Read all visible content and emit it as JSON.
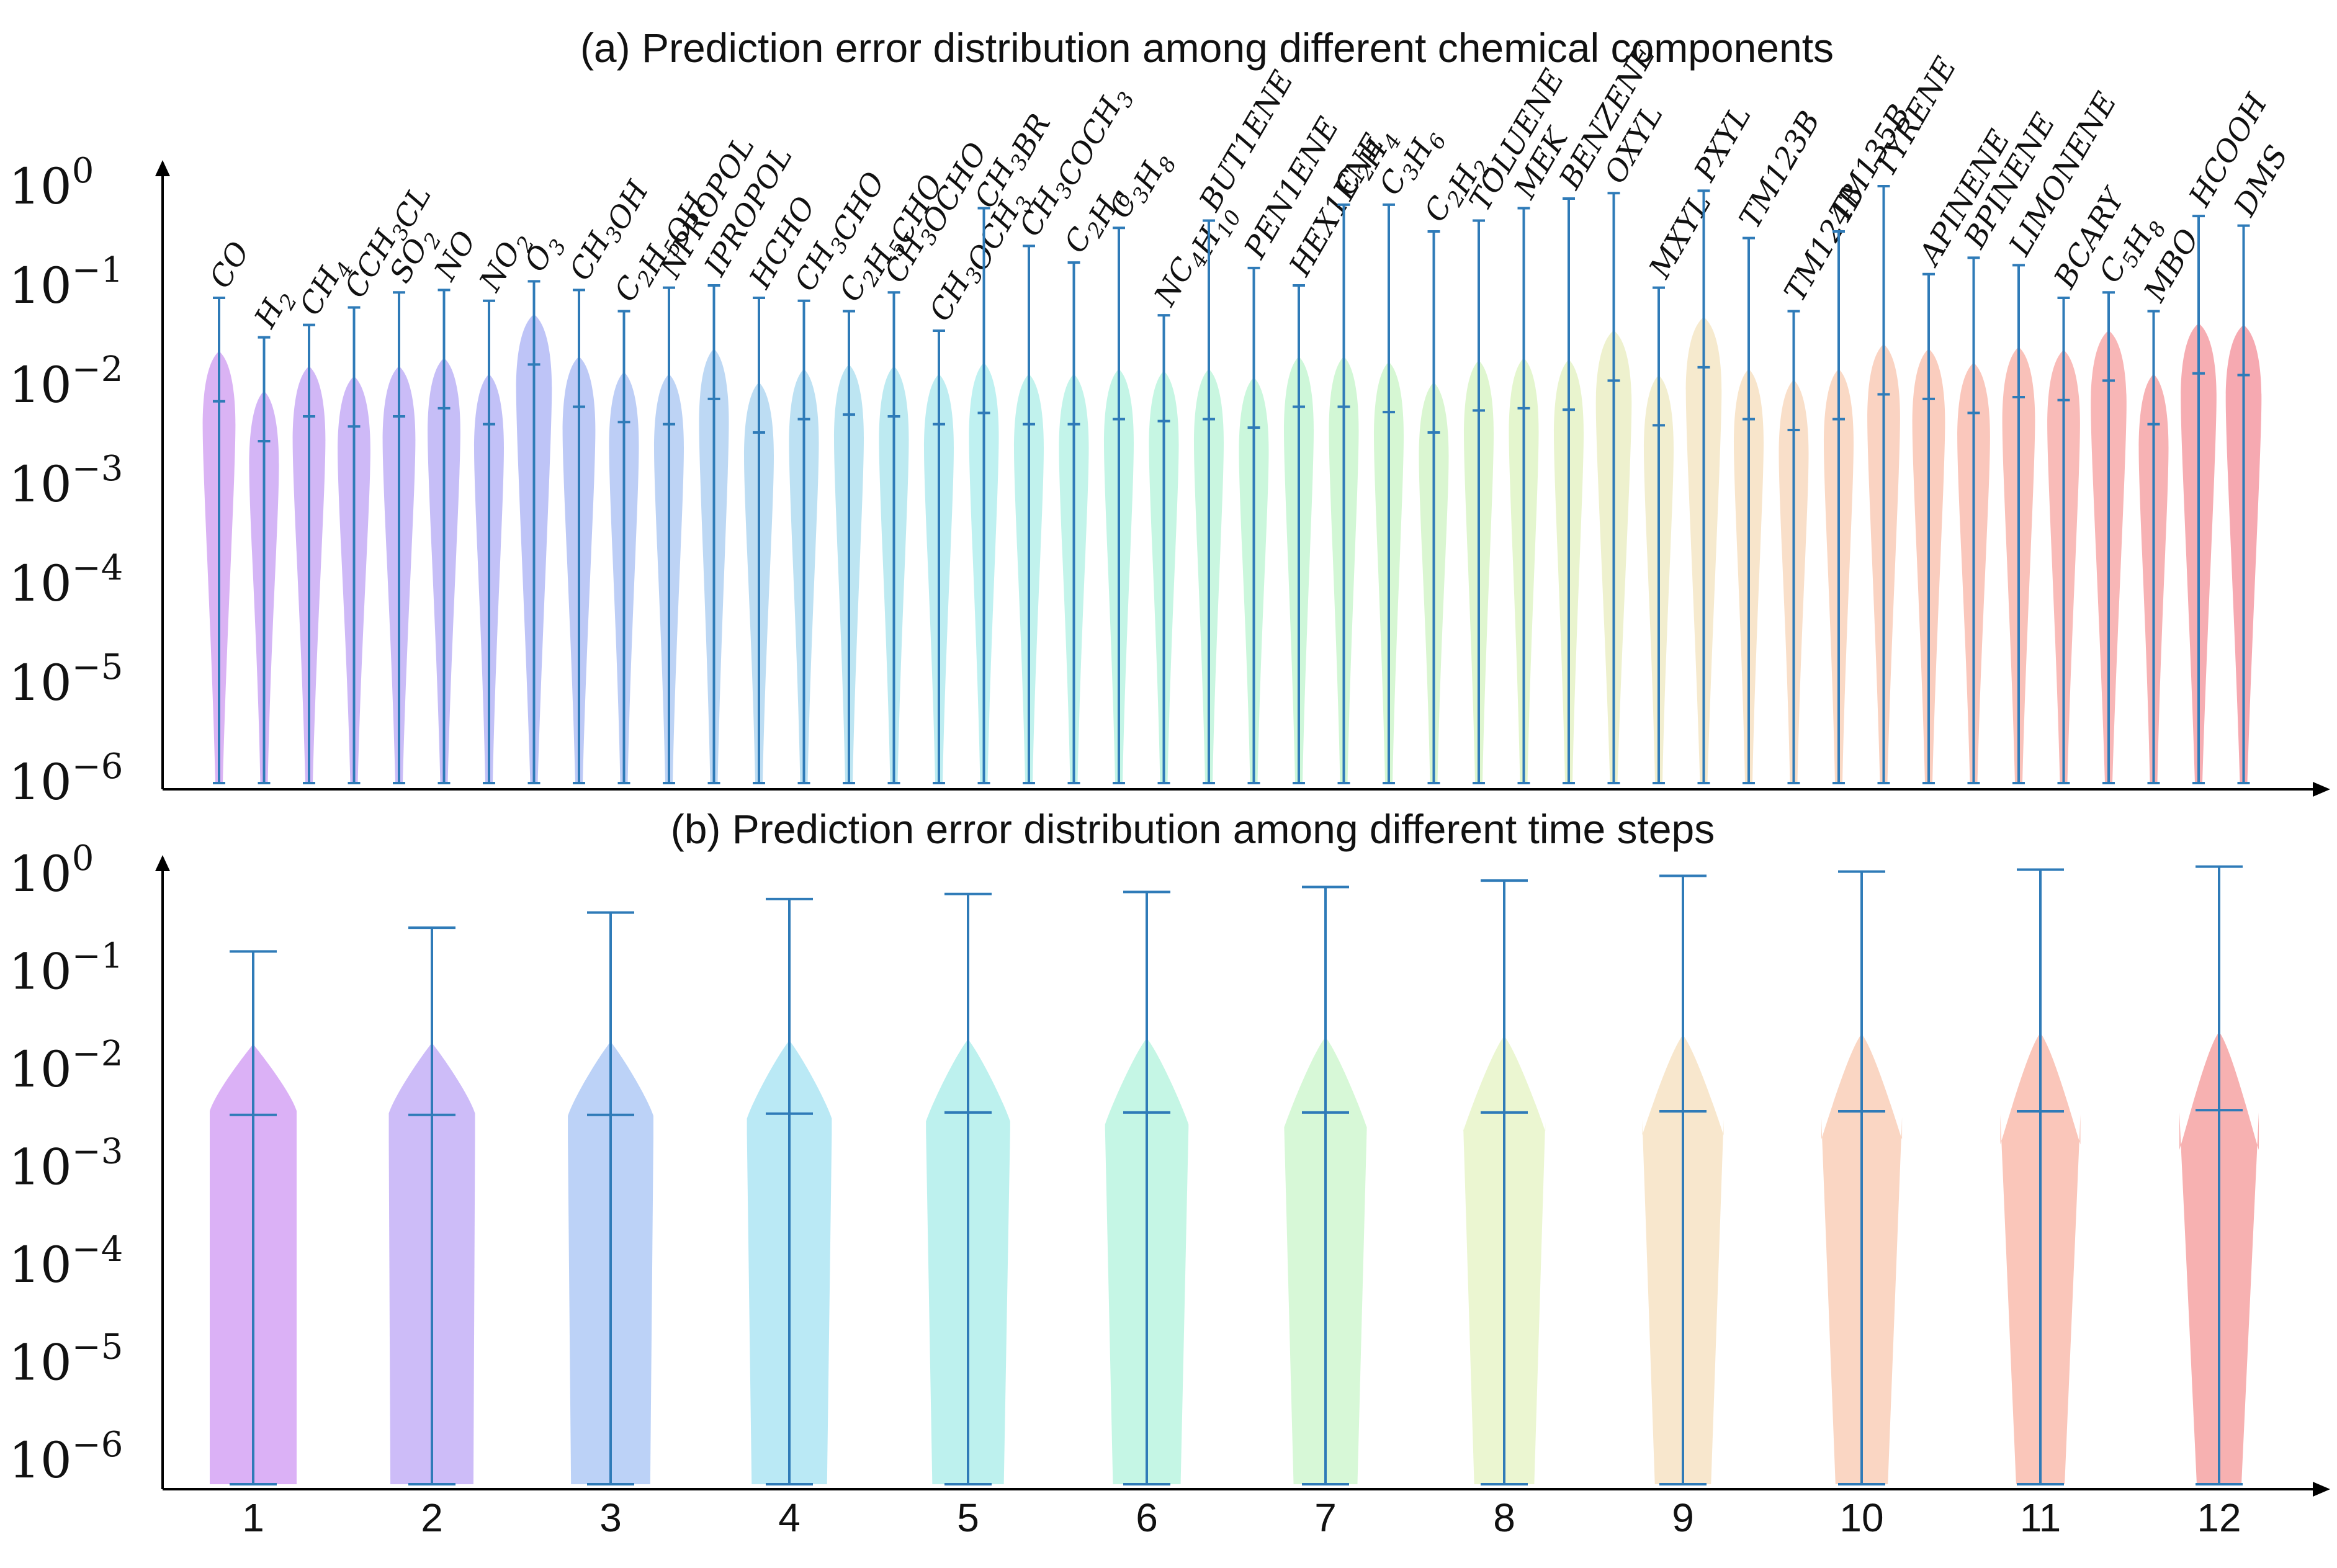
{
  "colors": {
    "stats": "#2f7bb8",
    "axis": "#000000"
  },
  "chart_data": [
    {
      "id": "a",
      "type": "violin",
      "title": "(a) Prediction error distribution among different chemical components",
      "yscale": "log",
      "ylim": [
        5e-07,
        1.0
      ],
      "yticks": [
        {
          "value": 1,
          "base": "10",
          "exp": "0"
        },
        {
          "value": 0.1,
          "base": "10",
          "exp": "−1"
        },
        {
          "value": 0.01,
          "base": "10",
          "exp": "−2"
        },
        {
          "value": 0.001,
          "base": "10",
          "exp": "−3"
        },
        {
          "value": 0.0001,
          "base": "10",
          "exp": "−4"
        },
        {
          "value": 1e-05,
          "base": "10",
          "exp": "−5"
        },
        {
          "value": 1e-06,
          "base": "10",
          "exp": "−6"
        }
      ],
      "categories": [
        {
          "label": [
            "CO"
          ],
          "sub": [
            ""
          ],
          "max": 0.075,
          "median": 0.0068,
          "min": 6e-07,
          "color": "#d4a6f2",
          "width": 0.55
        },
        {
          "label": [
            "H"
          ],
          "sub": [
            "2"
          ],
          "max": 0.03,
          "median": 0.0027,
          "min": 6e-07,
          "color": "#cda8f4",
          "width": 0.5
        },
        {
          "label": [
            "CH"
          ],
          "sub": [
            "4"
          ],
          "max": 0.04,
          "median": 0.0048,
          "min": 6e-07,
          "color": "#c9aaf5",
          "width": 0.55
        },
        {
          "label": [
            "CCH",
            "CL"
          ],
          "sub": [
            "3",
            ""
          ],
          "max": 0.06,
          "median": 0.0038,
          "min": 6e-07,
          "color": "#c5adf6",
          "width": 0.55
        },
        {
          "label": [
            "SO"
          ],
          "sub": [
            "2"
          ],
          "max": 0.085,
          "median": 0.0048,
          "min": 6e-07,
          "color": "#c1b0f6",
          "width": 0.55
        },
        {
          "label": [
            "NO"
          ],
          "sub": [
            ""
          ],
          "max": 0.09,
          "median": 0.0058,
          "min": 6e-07,
          "color": "#bcb3f6",
          "width": 0.55
        },
        {
          "label": [
            "NO"
          ],
          "sub": [
            "2"
          ],
          "max": 0.07,
          "median": 0.004,
          "min": 6e-07,
          "color": "#b7b6f6",
          "width": 0.5
        },
        {
          "label": [
            "O"
          ],
          "sub": [
            "3"
          ],
          "max": 0.11,
          "median": 0.016,
          "min": 6e-07,
          "color": "#b3baf6",
          "width": 0.6
        },
        {
          "label": [
            "CH",
            "OH"
          ],
          "sub": [
            "3",
            ""
          ],
          "max": 0.09,
          "median": 0.006,
          "min": 6e-07,
          "color": "#b2c0f5",
          "width": 0.55
        },
        {
          "label": [
            "C",
            "H",
            "OH"
          ],
          "sub": [
            "2",
            "5",
            ""
          ],
          "max": 0.055,
          "median": 0.0042,
          "min": 6e-07,
          "color": "#b2c6f4",
          "width": 0.5
        },
        {
          "label": [
            "NPROPOL"
          ],
          "sub": [
            ""
          ],
          "max": 0.095,
          "median": 0.004,
          "min": 6e-07,
          "color": "#b2cbf3",
          "width": 0.5
        },
        {
          "label": [
            "IPROPOL"
          ],
          "sub": [
            ""
          ],
          "max": 0.1,
          "median": 0.0072,
          "min": 6e-07,
          "color": "#b2d1f2",
          "width": 0.5
        },
        {
          "label": [
            "HCHO"
          ],
          "sub": [
            ""
          ],
          "max": 0.075,
          "median": 0.0033,
          "min": 6e-07,
          "color": "#b2d7f1",
          "width": 0.5
        },
        {
          "label": [
            "CH",
            "CHO"
          ],
          "sub": [
            "3",
            ""
          ],
          "max": 0.07,
          "median": 0.0045,
          "min": 6e-07,
          "color": "#b2dcf1",
          "width": 0.5
        },
        {
          "label": [
            "C",
            "H",
            "CHO"
          ],
          "sub": [
            "2",
            "5",
            ""
          ],
          "max": 0.055,
          "median": 0.005,
          "min": 6e-07,
          "color": "#b2e1f0",
          "width": 0.5
        },
        {
          "label": [
            "CH",
            "OCHO"
          ],
          "sub": [
            "3",
            ""
          ],
          "max": 0.085,
          "median": 0.0048,
          "min": 6e-07,
          "color": "#b2e6ef",
          "width": 0.5
        },
        {
          "label": [
            "CH",
            "OCH"
          ],
          "sub": [
            "3",
            "3"
          ],
          "max": 0.035,
          "median": 0.004,
          "min": 6e-07,
          "color": "#b3eaef",
          "width": 0.5
        },
        {
          "label": [
            "CH",
            "BR"
          ],
          "sub": [
            "3",
            ""
          ],
          "max": 0.6,
          "median": 0.0052,
          "min": 6e-07,
          "color": "#b4eeee",
          "width": 0.5
        },
        {
          "label": [
            "CH",
            "COCH"
          ],
          "sub": [
            "3",
            "3"
          ],
          "max": 0.25,
          "median": 0.004,
          "min": 6e-07,
          "color": "#b6f0ea",
          "width": 0.5
        },
        {
          "label": [
            "C",
            "H"
          ],
          "sub": [
            "2",
            "6"
          ],
          "max": 0.17,
          "median": 0.004,
          "min": 6e-07,
          "color": "#b8f2e6",
          "width": 0.5
        },
        {
          "label": [
            "C",
            "H"
          ],
          "sub": [
            "3",
            "8"
          ],
          "max": 0.38,
          "median": 0.0045,
          "min": 6e-07,
          "color": "#baf3e2",
          "width": 0.5
        },
        {
          "label": [
            "NC",
            "H"
          ],
          "sub": [
            "4",
            "10"
          ],
          "max": 0.05,
          "median": 0.0043,
          "min": 6e-07,
          "color": "#bcf4de",
          "width": 0.5
        },
        {
          "label": [
            "BUT1ENE"
          ],
          "sub": [
            ""
          ],
          "max": 0.45,
          "median": 0.0045,
          "min": 6e-07,
          "color": "#bff5da",
          "width": 0.5
        },
        {
          "label": [
            "PEN1ENE"
          ],
          "sub": [
            ""
          ],
          "max": 0.15,
          "median": 0.0037,
          "min": 6e-07,
          "color": "#c2f6d6",
          "width": 0.5
        },
        {
          "label": [
            "HEX1ENE"
          ],
          "sub": [
            ""
          ],
          "max": 0.1,
          "median": 0.006,
          "min": 6e-07,
          "color": "#c6f6d2",
          "width": 0.5
        },
        {
          "label": [
            "C",
            "H"
          ],
          "sub": [
            "2",
            "4"
          ],
          "max": 0.65,
          "median": 0.006,
          "min": 6e-07,
          "color": "#caf6ce",
          "width": 0.5
        },
        {
          "label": [
            "C",
            "H"
          ],
          "sub": [
            "3",
            "6"
          ],
          "max": 0.65,
          "median": 0.0053,
          "min": 6e-07,
          "color": "#cff6cb",
          "width": 0.5
        },
        {
          "label": [
            "C",
            "H"
          ],
          "sub": [
            "2",
            "2"
          ],
          "max": 0.35,
          "median": 0.0033,
          "min": 6e-07,
          "color": "#d4f5c9",
          "width": 0.5
        },
        {
          "label": [
            "TOLUENE"
          ],
          "sub": [
            ""
          ],
          "max": 0.45,
          "median": 0.0055,
          "min": 6e-07,
          "color": "#d9f5c7",
          "width": 0.5
        },
        {
          "label": [
            "MEK"
          ],
          "sub": [
            ""
          ],
          "max": 0.6,
          "median": 0.0058,
          "min": 6e-07,
          "color": "#dff4c6",
          "width": 0.5
        },
        {
          "label": [
            "BENZENE"
          ],
          "sub": [
            ""
          ],
          "max": 0.75,
          "median": 0.0056,
          "min": 6e-07,
          "color": "#e5f2c6",
          "width": 0.5
        },
        {
          "label": [
            "OXYL"
          ],
          "sub": [
            ""
          ],
          "max": 0.85,
          "median": 0.011,
          "min": 6e-07,
          "color": "#ebeec6",
          "width": 0.6
        },
        {
          "label": [
            "MXYL"
          ],
          "sub": [
            ""
          ],
          "max": 0.095,
          "median": 0.0039,
          "min": 6e-07,
          "color": "#f0ebc7",
          "width": 0.5
        },
        {
          "label": [
            "PXYL"
          ],
          "sub": [
            ""
          ],
          "max": 0.9,
          "median": 0.015,
          "min": 6e-07,
          "color": "#f5e6c6",
          "width": 0.6
        },
        {
          "label": [
            "TM123B"
          ],
          "sub": [
            ""
          ],
          "max": 0.3,
          "median": 0.0045,
          "min": 6e-07,
          "color": "#f7e0c2",
          "width": 0.5
        },
        {
          "label": [
            "TM124B"
          ],
          "sub": [
            ""
          ],
          "max": 0.055,
          "median": 0.0035,
          "min": 6e-07,
          "color": "#f8d9bf",
          "width": 0.5
        },
        {
          "label": [
            "TM135B"
          ],
          "sub": [
            ""
          ],
          "max": 0.35,
          "median": 0.0045,
          "min": 6e-07,
          "color": "#f9d2bb",
          "width": 0.5
        },
        {
          "label": [
            "TYRENE"
          ],
          "sub": [
            ""
          ],
          "max": 1.0,
          "median": 0.008,
          "min": 6e-07,
          "color": "#f9cbb7",
          "width": 0.55
        },
        {
          "label": [
            "APINENE"
          ],
          "sub": [
            ""
          ],
          "max": 0.13,
          "median": 0.0072,
          "min": 6e-07,
          "color": "#f9c4b3",
          "width": 0.55
        },
        {
          "label": [
            "BPINENE"
          ],
          "sub": [
            ""
          ],
          "max": 0.19,
          "median": 0.0052,
          "min": 6e-07,
          "color": "#f9bdb0",
          "width": 0.55
        },
        {
          "label": [
            "LIMONENE"
          ],
          "sub": [
            ""
          ],
          "max": 0.16,
          "median": 0.0075,
          "min": 6e-07,
          "color": "#f8b6ad",
          "width": 0.55
        },
        {
          "label": [
            "BCARY"
          ],
          "sub": [
            ""
          ],
          "max": 0.075,
          "median": 0.007,
          "min": 6e-07,
          "color": "#f8afab",
          "width": 0.55
        },
        {
          "label": [
            "C",
            "H"
          ],
          "sub": [
            "5",
            "8"
          ],
          "max": 0.085,
          "median": 0.011,
          "min": 6e-07,
          "color": "#f7a9a9",
          "width": 0.6
        },
        {
          "label": [
            "MBO"
          ],
          "sub": [
            ""
          ],
          "max": 0.055,
          "median": 0.004,
          "min": 6e-07,
          "color": "#f6a4a7",
          "width": 0.5
        },
        {
          "label": [
            "HCOOH"
          ],
          "sub": [
            ""
          ],
          "max": 0.5,
          "median": 0.013,
          "min": 6e-07,
          "color": "#f59fa5",
          "width": 0.6
        },
        {
          "label": [
            "DMS"
          ],
          "sub": [
            ""
          ],
          "max": 0.4,
          "median": 0.0125,
          "min": 6e-07,
          "color": "#f49aa3",
          "width": 0.6
        }
      ]
    },
    {
      "id": "b",
      "type": "violin",
      "title": "(b) Prediction error distribution among different time steps",
      "yscale": "log",
      "ylim": [
        5e-07,
        1.2
      ],
      "yticks": [
        {
          "value": 1,
          "base": "10",
          "exp": "0"
        },
        {
          "value": 0.1,
          "base": "10",
          "exp": "−1"
        },
        {
          "value": 0.01,
          "base": "10",
          "exp": "−2"
        },
        {
          "value": 0.001,
          "base": "10",
          "exp": "−3"
        },
        {
          "value": 0.0001,
          "base": "10",
          "exp": "−4"
        },
        {
          "value": 1e-05,
          "base": "10",
          "exp": "−5"
        },
        {
          "value": 1e-06,
          "base": "10",
          "exp": "−6"
        }
      ],
      "categories": [
        {
          "label": "1",
          "max": 0.16,
          "median": 0.0034,
          "min": 6e-07,
          "color": "#d7a8f5"
        },
        {
          "label": "2",
          "max": 0.28,
          "median": 0.0034,
          "min": 6e-07,
          "color": "#c8b5f7"
        },
        {
          "label": "3",
          "max": 0.4,
          "median": 0.0034,
          "min": 6e-07,
          "color": "#b5cdf6"
        },
        {
          "label": "4",
          "max": 0.55,
          "median": 0.0035,
          "min": 6e-07,
          "color": "#b3e7f4"
        },
        {
          "label": "5",
          "max": 0.62,
          "median": 0.0036,
          "min": 6e-07,
          "color": "#b6f0ec"
        },
        {
          "label": "6",
          "max": 0.65,
          "median": 0.0036,
          "min": 6e-07,
          "color": "#bff5e2"
        },
        {
          "label": "7",
          "max": 0.73,
          "median": 0.0036,
          "min": 6e-07,
          "color": "#d3f7d3"
        },
        {
          "label": "8",
          "max": 0.85,
          "median": 0.0036,
          "min": 6e-07,
          "color": "#e9f5cc"
        },
        {
          "label": "9",
          "max": 0.95,
          "median": 0.0037,
          "min": 6e-07,
          "color": "#f7e4c8"
        },
        {
          "label": "10",
          "max": 1.05,
          "median": 0.0037,
          "min": 6e-07,
          "color": "#f9d2bd"
        },
        {
          "label": "11",
          "max": 1.1,
          "median": 0.0037,
          "min": 6e-07,
          "color": "#f9c0b3"
        },
        {
          "label": "12",
          "max": 1.18,
          "median": 0.0038,
          "min": 6e-07,
          "color": "#f6a9a9"
        }
      ]
    }
  ]
}
